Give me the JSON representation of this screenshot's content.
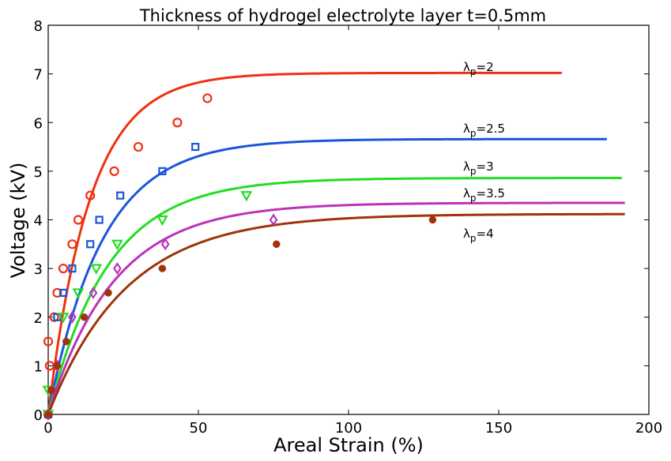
{
  "chart_data": {
    "type": "scatter",
    "title": "Thickness of hydrogel electrolyte layer  t=0.5mm",
    "xlabel": "Areal Strain (%)",
    "ylabel": "Voltage (kV)",
    "xlim": [
      0,
      200
    ],
    "ylim": [
      0,
      8
    ],
    "xticks": [
      "0",
      "50",
      "100",
      "150",
      "200"
    ],
    "yticks": [
      "0",
      "1",
      "2",
      "3",
      "4",
      "5",
      "6",
      "7",
      "8"
    ],
    "grid": false,
    "series": [
      {
        "name": "λp=2",
        "name_base": "λ",
        "name_sub": "p",
        "name_rest": "=2",
        "color": "#f03010",
        "marker": "circle",
        "curve": {
          "vmax": 7.02,
          "k": 14,
          "xmax": 171
        },
        "points": [
          [
            0,
            0
          ],
          [
            0,
            1.5
          ],
          [
            0.5,
            1.0
          ],
          [
            2,
            2.0
          ],
          [
            3,
            2.5
          ],
          [
            5,
            3.0
          ],
          [
            8,
            3.5
          ],
          [
            10,
            4.0
          ],
          [
            14,
            4.5
          ],
          [
            22,
            5.0
          ],
          [
            30,
            5.5
          ],
          [
            43,
            6.0
          ],
          [
            53,
            6.5
          ]
        ]
      },
      {
        "name": "λp=2.5",
        "name_base": "λ",
        "name_sub": "p",
        "name_rest": "=2.5",
        "color": "#1a55dd",
        "marker": "square",
        "curve": {
          "vmax": 5.66,
          "k": 18,
          "xmax": 186
        },
        "points": [
          [
            0,
            0
          ],
          [
            3,
            2.0
          ],
          [
            5,
            2.5
          ],
          [
            8,
            3.0
          ],
          [
            14,
            3.5
          ],
          [
            17,
            4.0
          ],
          [
            24,
            4.5
          ],
          [
            38,
            5.0
          ],
          [
            49,
            5.5
          ]
        ]
      },
      {
        "name": "λp=3",
        "name_base": "λ",
        "name_sub": "p",
        "name_rest": "=3",
        "color": "#22dd22",
        "marker": "triangle",
        "curve": {
          "vmax": 4.86,
          "k": 20,
          "xmax": 191
        },
        "points": [
          [
            0,
            0
          ],
          [
            0,
            0.5
          ],
          [
            5,
            2.0
          ],
          [
            10,
            2.5
          ],
          [
            16,
            3.0
          ],
          [
            23,
            3.5
          ],
          [
            38,
            4.0
          ],
          [
            66,
            4.5
          ]
        ]
      },
      {
        "name": "λp=3.5",
        "name_base": "λ",
        "name_sub": "p",
        "name_rest": "=3.5",
        "color": "#bb33bb",
        "marker": "diamond",
        "curve": {
          "vmax": 4.35,
          "k": 22,
          "xmax": 192
        },
        "points": [
          [
            0,
            0
          ],
          [
            1.5,
            0.5
          ],
          [
            3,
            1.0
          ],
          [
            8,
            2.0
          ],
          [
            15,
            2.5
          ],
          [
            23,
            3.0
          ],
          [
            39,
            3.5
          ],
          [
            75,
            4.0
          ]
        ]
      },
      {
        "name": "λp=4",
        "name_base": "λ",
        "name_sub": "p",
        "name_rest": "=4",
        "color": "#a0330a",
        "marker": "dot",
        "curve": {
          "vmax": 4.12,
          "k": 26,
          "xmax": 192
        },
        "points": [
          [
            0,
            0
          ],
          [
            1,
            0.5
          ],
          [
            3,
            1.0
          ],
          [
            6,
            1.5
          ],
          [
            12,
            2.0
          ],
          [
            20,
            2.5
          ],
          [
            38,
            3.0
          ],
          [
            76,
            3.5
          ],
          [
            128,
            4.0
          ]
        ]
      }
    ]
  }
}
